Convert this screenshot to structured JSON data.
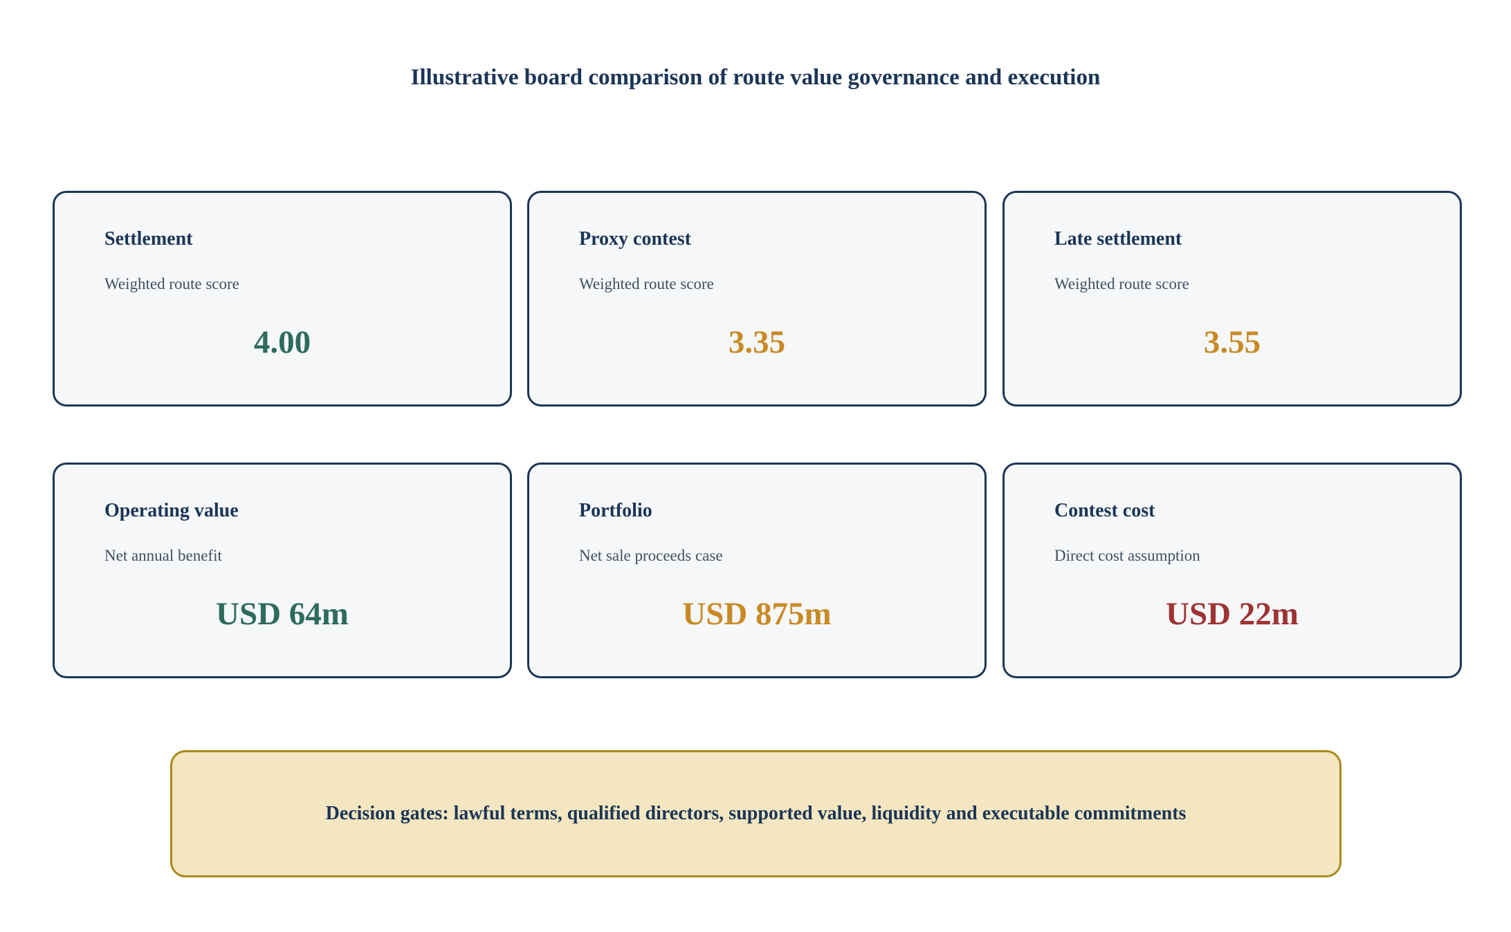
{
  "title": "Illustrative board comparison of route value governance and execution",
  "colors": {
    "navy": "#1b3556",
    "green": "#2e6b5c",
    "amber": "#c98a26",
    "red": "#9e3434",
    "gate_fill": "#f3e6c0",
    "gate_border": "#a88a1c"
  },
  "cards": [
    {
      "label": "Settlement",
      "subtitle": "Weighted route score",
      "value": "4.00",
      "value_color": "#2e6b5c"
    },
    {
      "label": "Proxy contest",
      "subtitle": "Weighted route score",
      "value": "3.35",
      "value_color": "#c98a26"
    },
    {
      "label": "Late settlement",
      "subtitle": "Weighted route score",
      "value": "3.55",
      "value_color": "#c98a26"
    },
    {
      "label": "Operating value",
      "subtitle": "Net annual benefit",
      "value": "USD 64m",
      "value_color": "#2e6b5c"
    },
    {
      "label": "Portfolio",
      "subtitle": "Net sale proceeds case",
      "value": "USD 875m",
      "value_color": "#c98a26"
    },
    {
      "label": "Contest cost",
      "subtitle": "Direct cost assumption",
      "value": "USD 22m",
      "value_color": "#9e3434"
    }
  ],
  "decision_gates": "Decision gates: lawful terms, qualified directors, supported value, liquidity and executable commitments"
}
